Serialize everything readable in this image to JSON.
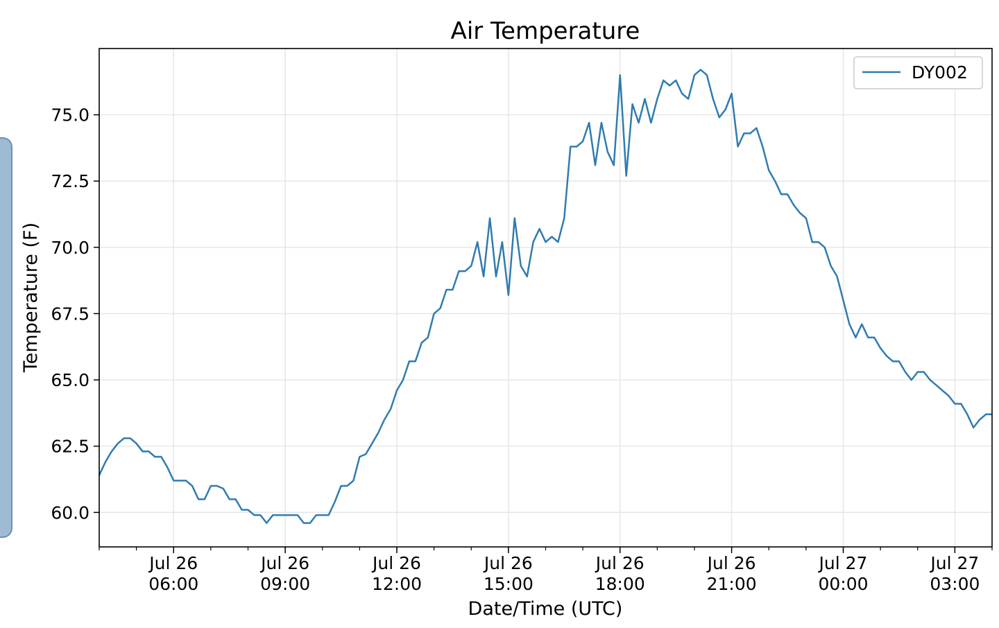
{
  "chart_data": {
    "type": "line",
    "title": "Air Temperature",
    "xlabel": "Date/Time (UTC)",
    "ylabel": "Temperature (F)",
    "legend_position": "upper-right",
    "grid": true,
    "ylim": [
      58.7,
      77.5
    ],
    "xlim": [
      "2018-07-26 04:00",
      "2018-07-27 04:00"
    ],
    "y_ticks": [
      "60.0",
      "62.5",
      "65.0",
      "67.5",
      "70.0",
      "72.5",
      "75.0"
    ],
    "x_ticks": [
      {
        "date": "Jul 26",
        "time": "06:00"
      },
      {
        "date": "Jul 26",
        "time": "09:00"
      },
      {
        "date": "Jul 26",
        "time": "12:00"
      },
      {
        "date": "Jul 26",
        "time": "15:00"
      },
      {
        "date": "Jul 26",
        "time": "18:00"
      },
      {
        "date": "Jul 26",
        "time": "21:00"
      },
      {
        "date": "Jul 27",
        "time": "00:00"
      },
      {
        "date": "Jul 27",
        "time": "03:00"
      }
    ],
    "series": [
      {
        "name": "DY002",
        "color": "#2f7bb0",
        "x": [
          "2018-07-26 04:00",
          "2018-07-26 04:10",
          "2018-07-26 04:20",
          "2018-07-26 04:30",
          "2018-07-26 04:40",
          "2018-07-26 04:50",
          "2018-07-26 05:00",
          "2018-07-26 05:10",
          "2018-07-26 05:20",
          "2018-07-26 05:30",
          "2018-07-26 05:40",
          "2018-07-26 05:50",
          "2018-07-26 06:00",
          "2018-07-26 06:10",
          "2018-07-26 06:20",
          "2018-07-26 06:30",
          "2018-07-26 06:40",
          "2018-07-26 06:50",
          "2018-07-26 07:00",
          "2018-07-26 07:10",
          "2018-07-26 07:20",
          "2018-07-26 07:30",
          "2018-07-26 07:40",
          "2018-07-26 07:50",
          "2018-07-26 08:00",
          "2018-07-26 08:10",
          "2018-07-26 08:20",
          "2018-07-26 08:30",
          "2018-07-26 08:40",
          "2018-07-26 08:50",
          "2018-07-26 09:00",
          "2018-07-26 09:10",
          "2018-07-26 09:20",
          "2018-07-26 09:30",
          "2018-07-26 09:40",
          "2018-07-26 09:50",
          "2018-07-26 10:00",
          "2018-07-26 10:10",
          "2018-07-26 10:20",
          "2018-07-26 10:30",
          "2018-07-26 10:40",
          "2018-07-26 10:50",
          "2018-07-26 11:00",
          "2018-07-26 11:10",
          "2018-07-26 11:20",
          "2018-07-26 11:30",
          "2018-07-26 11:40",
          "2018-07-26 11:50",
          "2018-07-26 12:00",
          "2018-07-26 12:10",
          "2018-07-26 12:20",
          "2018-07-26 12:30",
          "2018-07-26 12:40",
          "2018-07-26 12:50",
          "2018-07-26 13:00",
          "2018-07-26 13:10",
          "2018-07-26 13:20",
          "2018-07-26 13:30",
          "2018-07-26 13:40",
          "2018-07-26 13:50",
          "2018-07-26 14:00",
          "2018-07-26 14:10",
          "2018-07-26 14:20",
          "2018-07-26 14:30",
          "2018-07-26 14:40",
          "2018-07-26 14:50",
          "2018-07-26 15:00",
          "2018-07-26 15:10",
          "2018-07-26 15:20",
          "2018-07-26 15:30",
          "2018-07-26 15:40",
          "2018-07-26 15:50",
          "2018-07-26 16:00",
          "2018-07-26 16:10",
          "2018-07-26 16:20",
          "2018-07-26 16:30",
          "2018-07-26 16:40",
          "2018-07-26 16:50",
          "2018-07-26 17:00",
          "2018-07-26 17:10",
          "2018-07-26 17:20",
          "2018-07-26 17:30",
          "2018-07-26 17:40",
          "2018-07-26 17:50",
          "2018-07-26 18:00",
          "2018-07-26 18:10",
          "2018-07-26 18:20",
          "2018-07-26 18:30",
          "2018-07-26 18:40",
          "2018-07-26 18:50",
          "2018-07-26 19:00",
          "2018-07-26 19:10",
          "2018-07-26 19:20",
          "2018-07-26 19:30",
          "2018-07-26 19:40",
          "2018-07-26 19:50",
          "2018-07-26 20:00",
          "2018-07-26 20:10",
          "2018-07-26 20:20",
          "2018-07-26 20:30",
          "2018-07-26 20:40",
          "2018-07-26 20:50",
          "2018-07-26 21:00",
          "2018-07-26 21:10",
          "2018-07-26 21:20",
          "2018-07-26 21:30",
          "2018-07-26 21:40",
          "2018-07-26 21:50",
          "2018-07-26 22:00",
          "2018-07-26 22:10",
          "2018-07-26 22:20",
          "2018-07-26 22:30",
          "2018-07-26 22:40",
          "2018-07-26 22:50",
          "2018-07-26 23:00",
          "2018-07-26 23:10",
          "2018-07-26 23:20",
          "2018-07-26 23:30",
          "2018-07-26 23:40",
          "2018-07-26 23:50",
          "2018-07-27 00:00",
          "2018-07-27 00:10",
          "2018-07-27 00:20",
          "2018-07-27 00:30",
          "2018-07-27 00:40",
          "2018-07-27 00:50",
          "2018-07-27 01:00",
          "2018-07-27 01:10",
          "2018-07-27 01:20",
          "2018-07-27 01:30",
          "2018-07-27 01:40",
          "2018-07-27 01:50",
          "2018-07-27 02:00",
          "2018-07-27 02:10",
          "2018-07-27 02:20",
          "2018-07-27 02:30",
          "2018-07-27 02:40",
          "2018-07-27 02:50",
          "2018-07-27 03:00",
          "2018-07-27 03:10",
          "2018-07-27 03:20",
          "2018-07-27 03:30",
          "2018-07-27 03:40",
          "2018-07-27 03:50",
          "2018-07-27 04:00"
        ],
        "y": [
          61.4,
          61.9,
          62.3,
          62.6,
          62.8,
          62.8,
          62.6,
          62.3,
          62.3,
          62.1,
          62.1,
          61.7,
          61.2,
          61.2,
          61.2,
          61.0,
          60.5,
          60.5,
          61.0,
          61.0,
          60.9,
          60.5,
          60.5,
          60.1,
          60.1,
          59.9,
          59.9,
          59.6,
          59.9,
          59.9,
          59.9,
          59.9,
          59.9,
          59.6,
          59.6,
          59.9,
          59.9,
          59.9,
          60.4,
          61.0,
          61.0,
          61.2,
          62.1,
          62.2,
          62.6,
          63.0,
          63.5,
          63.9,
          64.6,
          65.0,
          65.7,
          65.7,
          66.4,
          66.6,
          67.5,
          67.7,
          68.4,
          68.4,
          69.1,
          69.1,
          69.3,
          70.2,
          68.9,
          71.1,
          68.9,
          70.2,
          68.2,
          71.1,
          69.3,
          68.9,
          70.2,
          70.7,
          70.2,
          70.4,
          70.2,
          71.1,
          73.8,
          73.8,
          74.0,
          74.7,
          73.1,
          74.7,
          73.6,
          73.1,
          76.5,
          72.7,
          75.4,
          74.7,
          75.6,
          74.7,
          75.6,
          76.3,
          76.1,
          76.3,
          75.8,
          75.6,
          76.5,
          76.7,
          76.5,
          75.6,
          74.9,
          75.2,
          75.8,
          73.8,
          74.3,
          74.3,
          74.5,
          73.8,
          72.9,
          72.5,
          72.0,
          72.0,
          71.6,
          71.3,
          71.1,
          70.2,
          70.2,
          70.0,
          69.3,
          68.9,
          68.0,
          67.1,
          66.6,
          67.1,
          66.6,
          66.6,
          66.2,
          65.9,
          65.7,
          65.7,
          65.3,
          65.0,
          65.3,
          65.3,
          65.0,
          64.8,
          64.6,
          64.4,
          64.1,
          64.1,
          63.7,
          63.2,
          63.5,
          63.7,
          63.7
        ]
      }
    ]
  }
}
